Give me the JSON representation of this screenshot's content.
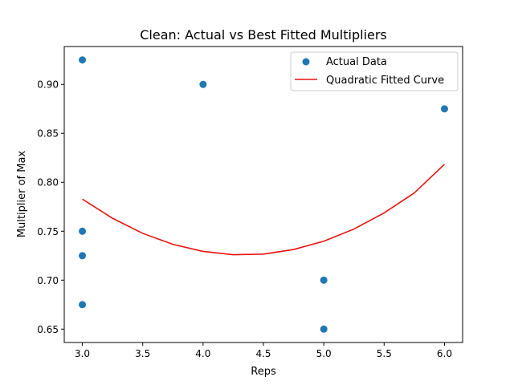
{
  "chart_data": {
    "type": "scatter",
    "title": "Clean: Actual vs Best Fitted Multipliers",
    "xlabel": "Reps",
    "ylabel": "Multiplier of Max",
    "xlim": [
      2.85,
      6.15
    ],
    "ylim": [
      0.6363,
      0.9387
    ],
    "xticks": [
      3.0,
      3.5,
      4.0,
      4.5,
      5.0,
      5.5,
      6.0
    ],
    "xtick_labels": [
      "3.0",
      "3.5",
      "4.0",
      "4.5",
      "5.0",
      "5.5",
      "6.0"
    ],
    "yticks": [
      0.65,
      0.7,
      0.75,
      0.8,
      0.85,
      0.9
    ],
    "ytick_labels": [
      "0.65",
      "0.70",
      "0.75",
      "0.80",
      "0.85",
      "0.90"
    ],
    "grid": false,
    "legend_position": "top-right",
    "series": [
      {
        "name": "Actual Data",
        "kind": "scatter",
        "color": "#1f77b4",
        "x": [
          3,
          3,
          3,
          3,
          4,
          5,
          5,
          6
        ],
        "y": [
          0.925,
          0.75,
          0.725,
          0.675,
          0.9,
          0.7,
          0.65,
          0.875
        ]
      },
      {
        "name": "Quadratic Fitted Curve",
        "kind": "line",
        "color": "#e8120c",
        "x": [
          3.0,
          3.25,
          3.5,
          3.75,
          4.0,
          4.25,
          4.5,
          4.75,
          5.0,
          5.25,
          5.5,
          5.75,
          6.0
        ],
        "y": [
          0.7828,
          0.7632,
          0.7478,
          0.7366,
          0.7294,
          0.726,
          0.7266,
          0.7313,
          0.7398,
          0.7522,
          0.7687,
          0.7891,
          0.8184
        ]
      }
    ]
  }
}
